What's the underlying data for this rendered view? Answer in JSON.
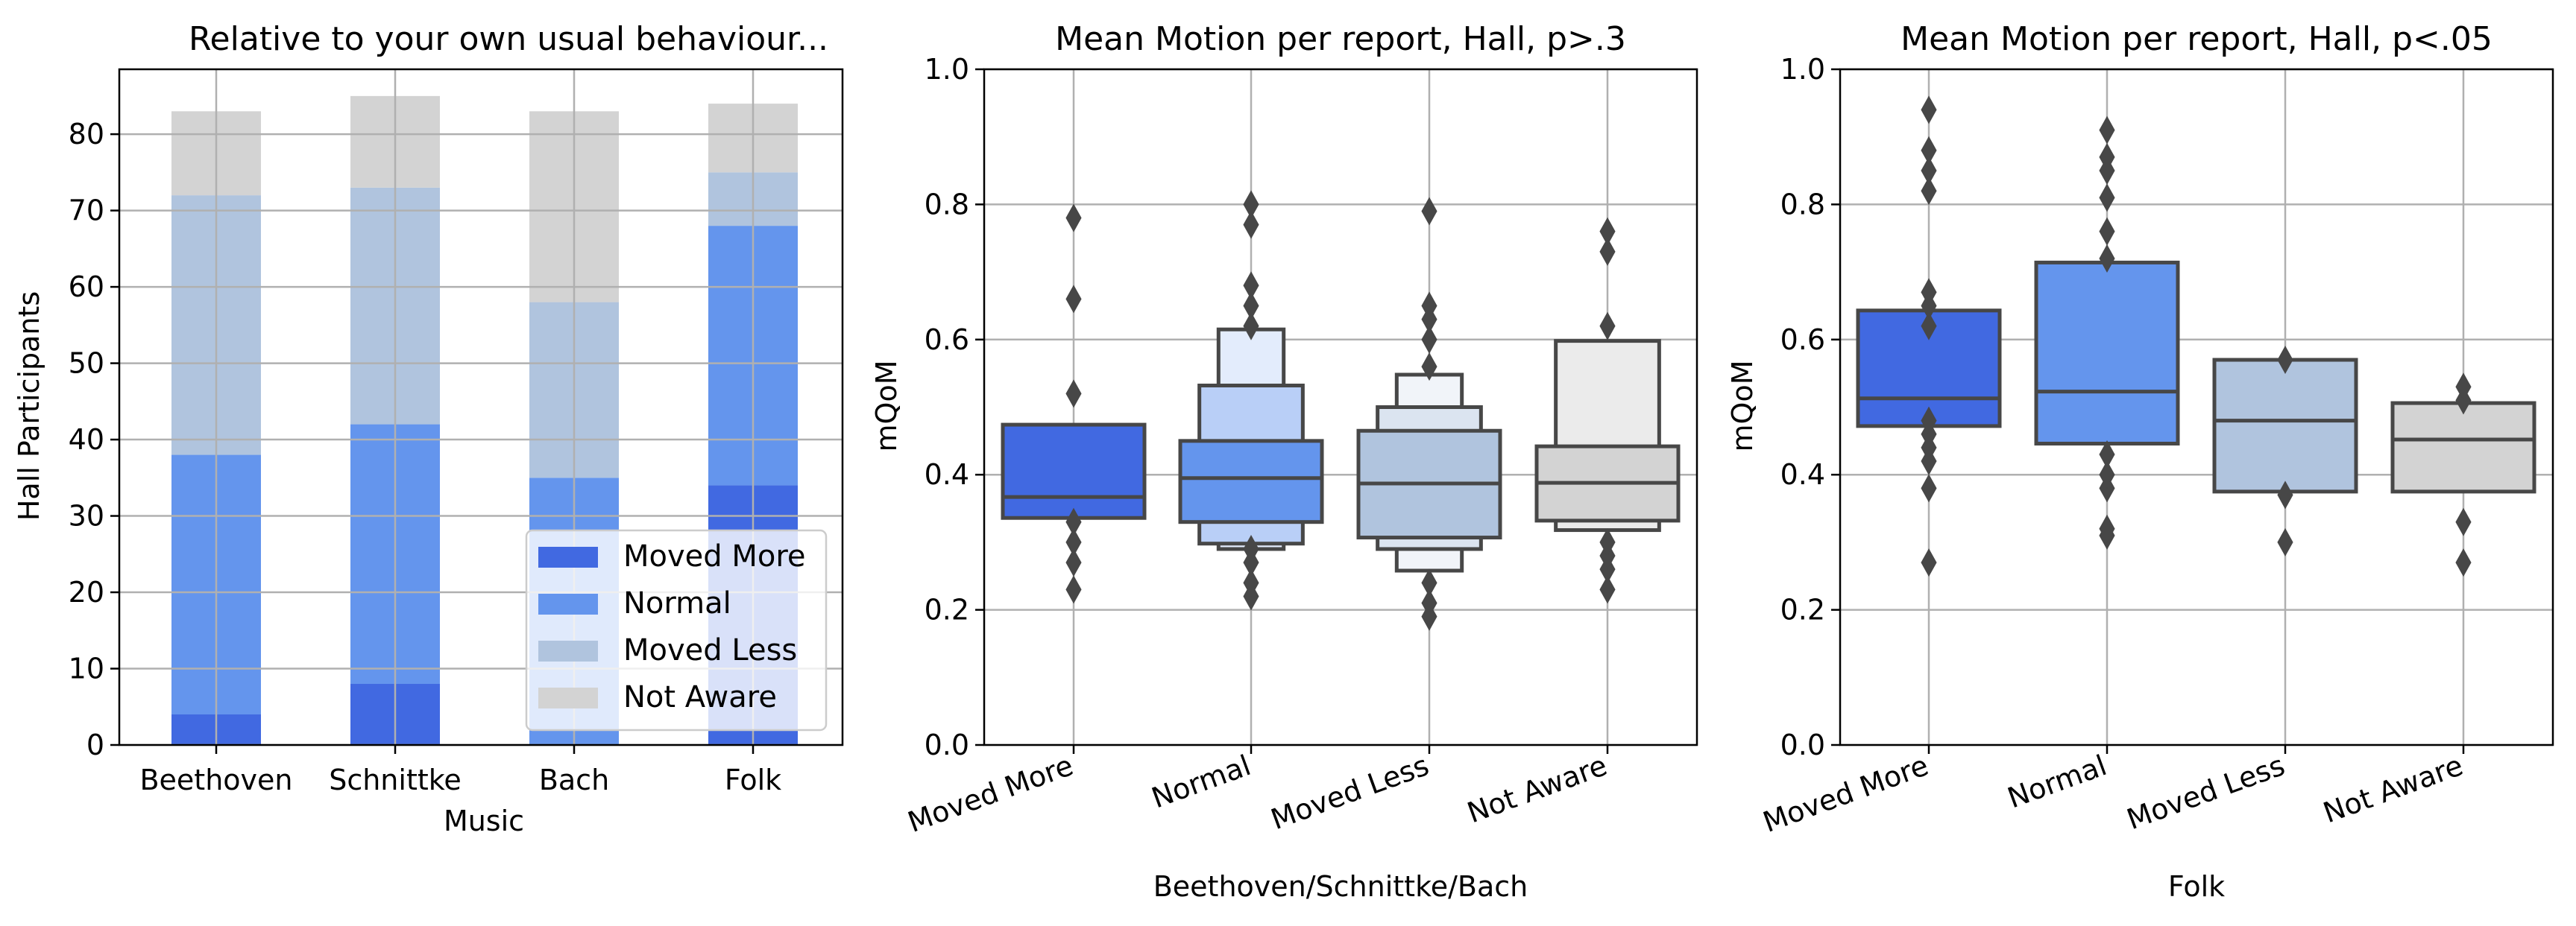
{
  "chart_data": [
    {
      "type": "bar",
      "stacked": true,
      "title": "Relative to your own usual behaviour...",
      "xlabel": "Music",
      "ylabel": "Hall Participants",
      "categories": [
        "Beethoven",
        "Schnittke",
        "Bach",
        "Folk"
      ],
      "ylim": [
        0,
        88.5
      ],
      "yticks": [
        0,
        10,
        20,
        30,
        40,
        50,
        60,
        70,
        80
      ],
      "grid": true,
      "legend_position": "lower-right",
      "series": [
        {
          "name": "Moved More",
          "color": "#4169e1",
          "values": [
            4,
            8,
            0,
            34
          ]
        },
        {
          "name": "Normal",
          "color": "#6495ed",
          "values": [
            34,
            34,
            35,
            34
          ]
        },
        {
          "name": "Moved Less",
          "color": "#b0c4de",
          "values": [
            34,
            31,
            23,
            7
          ]
        },
        {
          "name": "Not Aware",
          "color": "#d3d3d3",
          "values": [
            11,
            12,
            25,
            9
          ]
        }
      ]
    },
    {
      "type": "boxenplot",
      "title": "Mean Motion per report, Hall, p>.3",
      "xlabel": "Beethoven/Schnittke/Bach",
      "ylabel": "mQoM",
      "categories": [
        "Moved More",
        "Normal",
        "Moved Less",
        "Not Aware"
      ],
      "ylim": [
        0,
        1
      ],
      "yticks": [
        "0.0",
        "0.2",
        "0.4",
        "0.6",
        "0.8",
        "1.0"
      ],
      "grid": true,
      "boxes": [
        {
          "color": "#4169e1",
          "levels": [
            [
              0.336,
              0.474
            ]
          ],
          "median": 0.367,
          "outliers": [
            0.23,
            0.27,
            0.3,
            0.33,
            0.52,
            0.66,
            0.78
          ]
        },
        {
          "color": "#6495ed",
          "levels": [
            [
              0.33,
              0.45
            ],
            [
              0.298,
              0.532
            ],
            [
              0.29,
              0.615
            ]
          ],
          "median": 0.395,
          "outliers": [
            0.22,
            0.24,
            0.27,
            0.29,
            0.62,
            0.65,
            0.68,
            0.77,
            0.8
          ]
        },
        {
          "color": "#b0c4de",
          "levels": [
            [
              0.307,
              0.465
            ],
            [
              0.29,
              0.5
            ],
            [
              0.258,
              0.548
            ]
          ],
          "median": 0.387,
          "outliers": [
            0.19,
            0.21,
            0.24,
            0.56,
            0.6,
            0.63,
            0.65,
            0.79
          ]
        },
        {
          "color": "#d3d3d3",
          "levels": [
            [
              0.332,
              0.442
            ],
            [
              0.318,
              0.598
            ]
          ],
          "median": 0.388,
          "outliers": [
            0.23,
            0.26,
            0.28,
            0.3,
            0.62,
            0.73,
            0.76
          ]
        }
      ]
    },
    {
      "type": "box",
      "title": "Mean Motion per report, Hall, p<.05",
      "xlabel": "Folk",
      "ylabel": "mQoM",
      "categories": [
        "Moved More",
        "Normal",
        "Moved Less",
        "Not Aware"
      ],
      "ylim": [
        0,
        1
      ],
      "yticks": [
        "0.0",
        "0.2",
        "0.4",
        "0.6",
        "0.8",
        "1.0"
      ],
      "grid": true,
      "boxes": [
        {
          "color": "#4169e1",
          "q1": 0.472,
          "median": 0.513,
          "q3": 0.643,
          "outliers": [
            0.27,
            0.38,
            0.42,
            0.44,
            0.46,
            0.48,
            0.62,
            0.65,
            0.67,
            0.82,
            0.85,
            0.88,
            0.94
          ]
        },
        {
          "color": "#6495ed",
          "q1": 0.446,
          "median": 0.523,
          "q3": 0.714,
          "outliers": [
            0.31,
            0.32,
            0.38,
            0.4,
            0.43,
            0.72,
            0.76,
            0.81,
            0.85,
            0.87,
            0.91
          ]
        },
        {
          "color": "#b0c4de",
          "q1": 0.375,
          "median": 0.48,
          "q3": 0.57,
          "outliers": [
            0.3,
            0.37,
            0.57
          ]
        },
        {
          "color": "#d3d3d3",
          "q1": 0.375,
          "median": 0.452,
          "q3": 0.506,
          "outliers": [
            0.27,
            0.33,
            0.51,
            0.53
          ]
        }
      ]
    }
  ]
}
